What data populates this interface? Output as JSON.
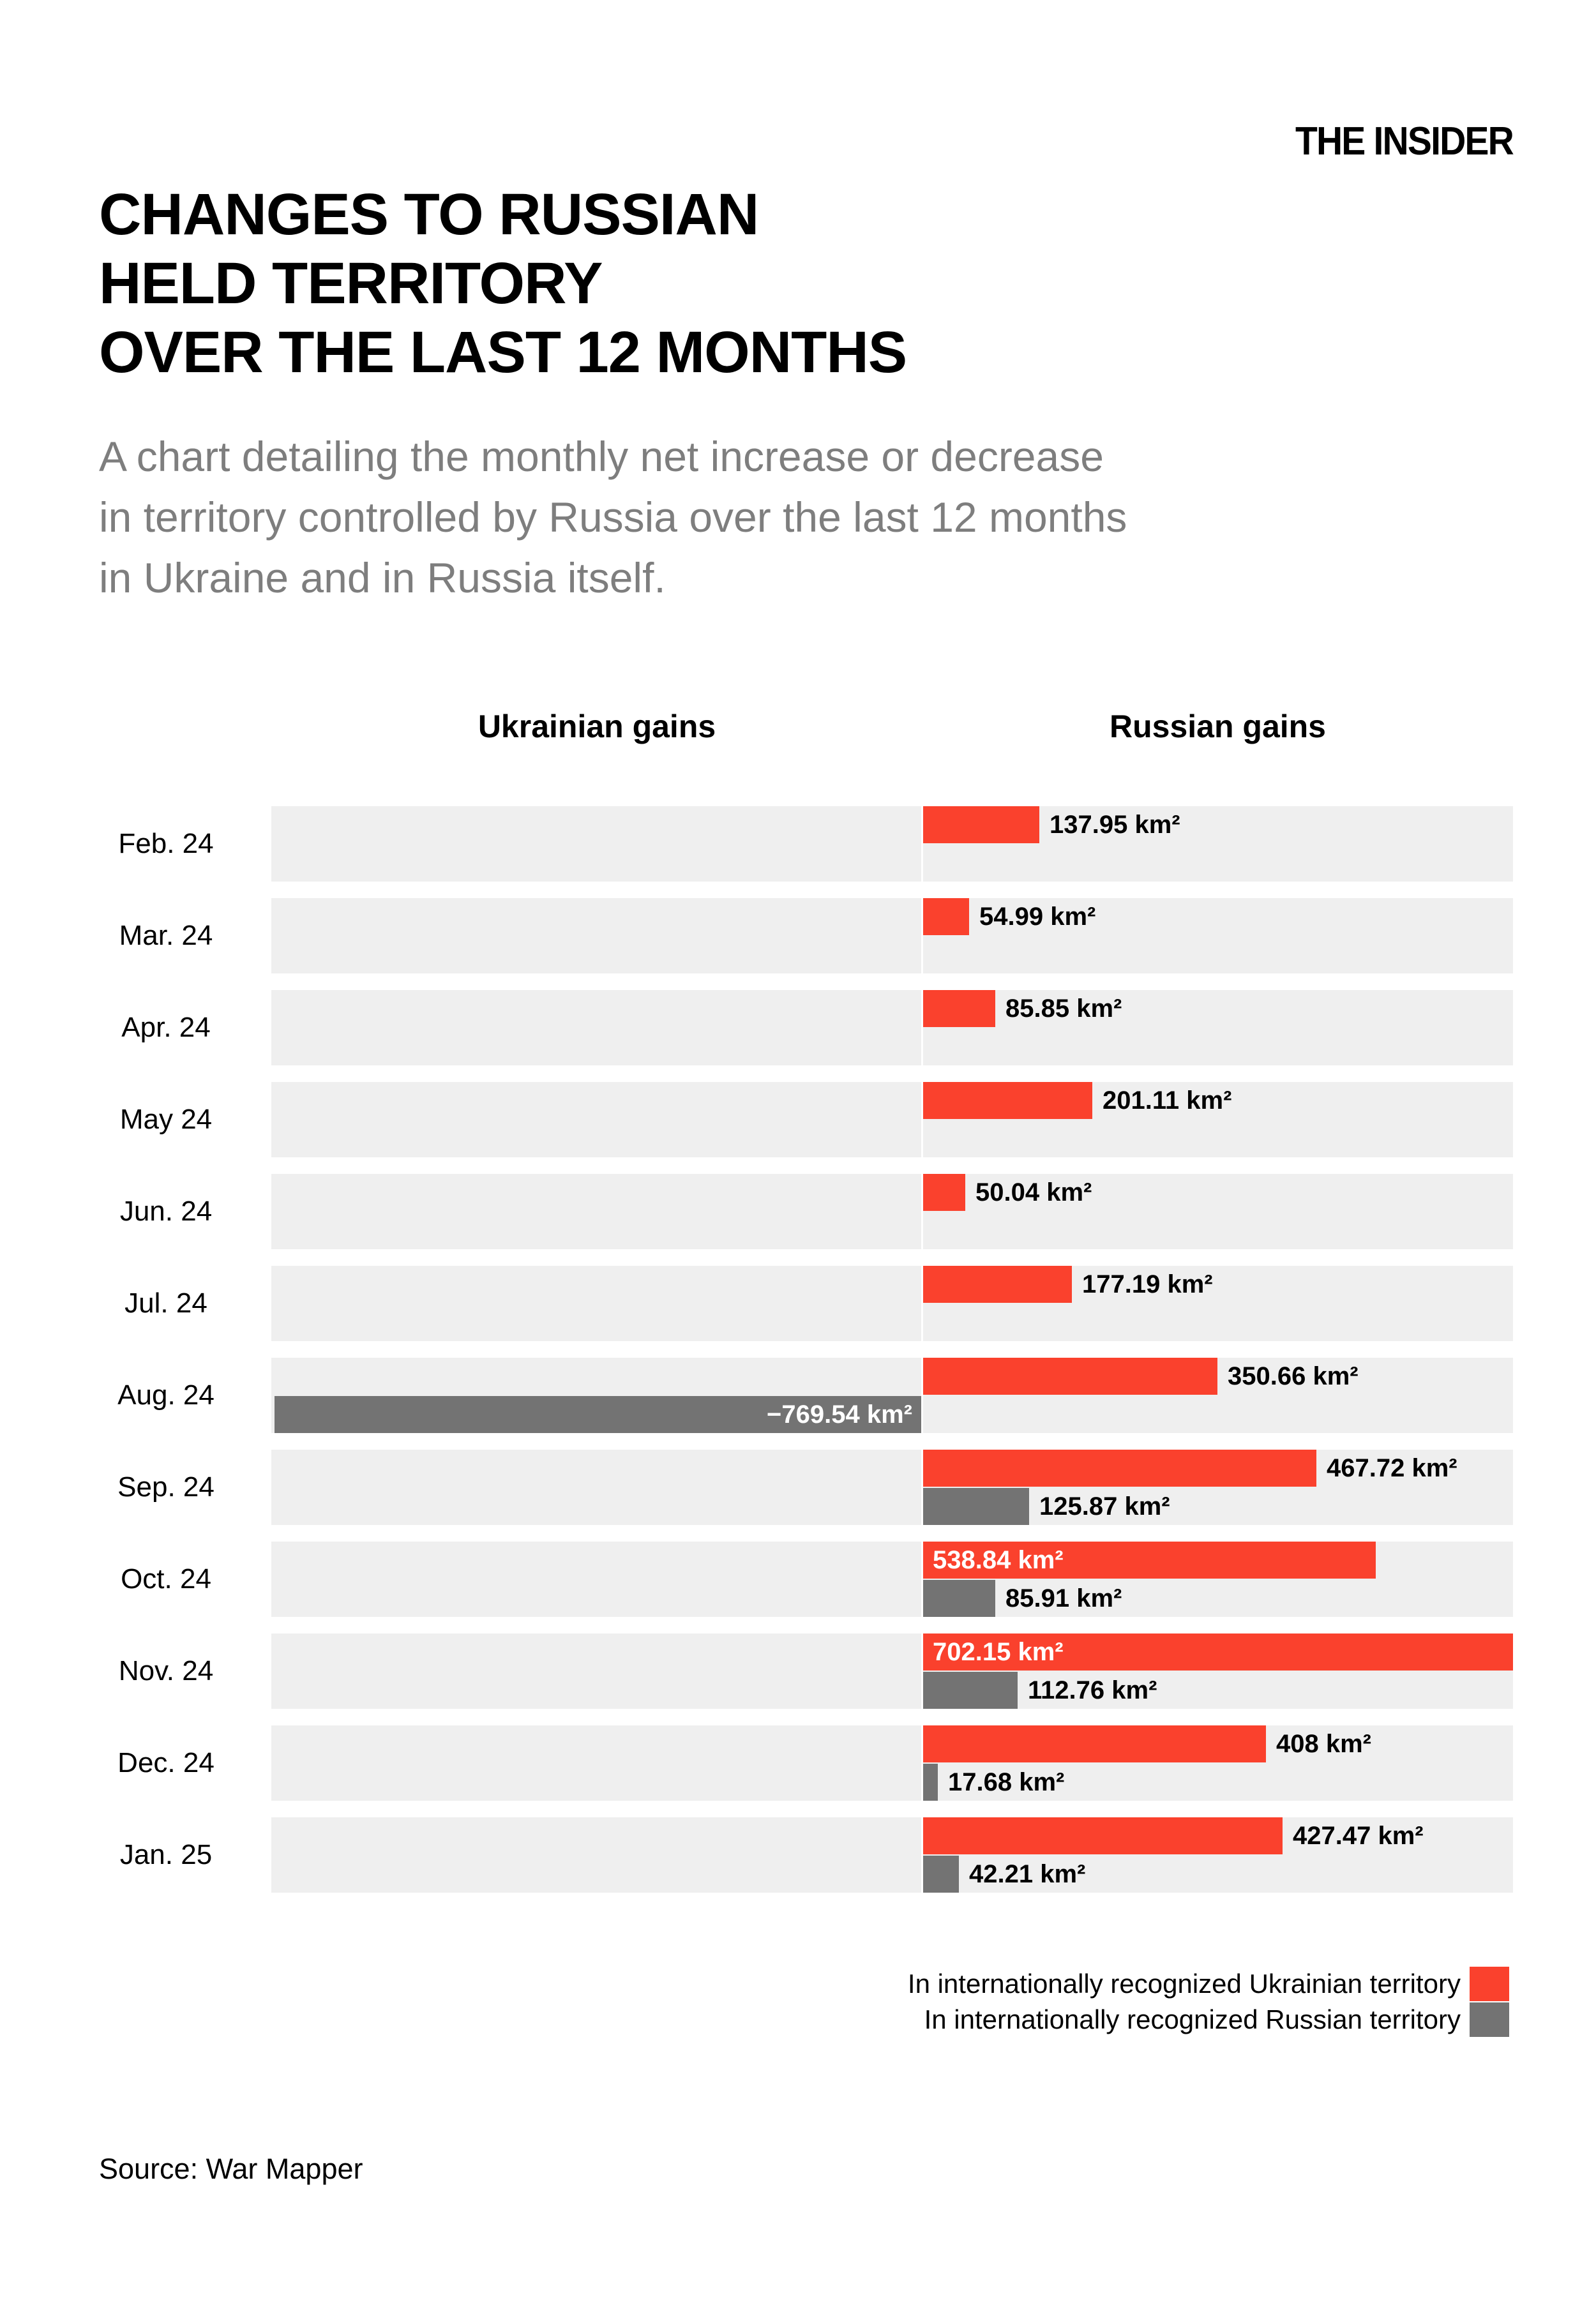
{
  "brand": "THE INSIDER",
  "title_lines": [
    "CHANGES TO RUSSIAN",
    "HELD TERRITORY",
    "OVER THE LAST 12 MONTHS"
  ],
  "subtitle_lines": [
    "A chart detailing the monthly net increase or decrease",
    "in territory controlled by Russia over the last 12 months",
    "in Ukraine and in Russia itself."
  ],
  "chart_data": {
    "type": "bar",
    "orientation": "horizontal-diverging",
    "unit": "km²",
    "column_headers": [
      "Ukrainian gains",
      "Russian gains"
    ],
    "categories": [
      "Feb. 24",
      "Mar. 24",
      "Apr. 24",
      "May 24",
      "Jun. 24",
      "Jul. 24",
      "Aug. 24",
      "Sep. 24",
      "Oct. 24",
      "Nov. 24",
      "Dec. 24",
      "Jan. 25"
    ],
    "series": [
      {
        "name": "In internationally recognized Ukrainian territory",
        "color": "#fa412d",
        "values": [
          137.95,
          54.99,
          85.85,
          201.11,
          50.04,
          177.19,
          350.66,
          467.72,
          538.84,
          702.15,
          408,
          427.47
        ],
        "labels": [
          "137.95 km²",
          "54.99 km²",
          "85.85 km²",
          "201.11 km²",
          "50.04 km²",
          "177.19 km²",
          "350.66 km²",
          "467.72 km²",
          "538.84 km²",
          "702.15 km²",
          "408 km²",
          "427.47 km²"
        ],
        "label_inside": [
          false,
          false,
          false,
          false,
          false,
          false,
          false,
          false,
          true,
          true,
          false,
          false
        ]
      },
      {
        "name": "In internationally recognized Russian territory",
        "color": "#737373",
        "values": [
          null,
          null,
          null,
          null,
          null,
          null,
          -769.54,
          125.87,
          85.91,
          112.76,
          17.68,
          42.21
        ],
        "labels": [
          null,
          null,
          null,
          null,
          null,
          null,
          "−769.54 km²",
          "125.87 km²",
          "85.91 km²",
          "112.76 km²",
          "17.68 km²",
          "42.21 km²"
        ],
        "label_inside": [
          false,
          false,
          false,
          false,
          false,
          false,
          true,
          false,
          false,
          false,
          false,
          false
        ]
      }
    ],
    "axis": {
      "xlim_left": -769.54,
      "xlim_right": 702.15,
      "center_value": 0,
      "gridlines": false,
      "track_color": "#efefef"
    }
  },
  "legend": {
    "items": [
      {
        "label": "In internationally recognized Ukrainian territory",
        "color": "#fa412d"
      },
      {
        "label": "In internationally recognized Russian territory",
        "color": "#737373"
      }
    ]
  },
  "source": "Source: War Mapper"
}
